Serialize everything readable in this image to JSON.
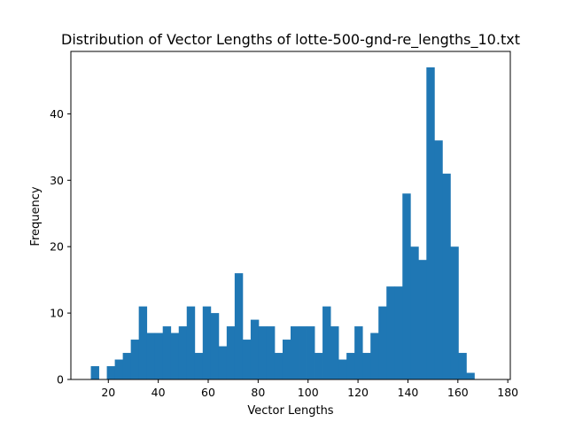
{
  "chart_data": {
    "type": "bar",
    "title": "Distribution of Vector Lengths of lotte-500-gnd-re_lengths_10.txt",
    "xlabel": "Vector Lengths",
    "ylabel": "Frequency",
    "xlim": [
      5.0,
      181.0
    ],
    "ylim": [
      0,
      49.4
    ],
    "xticks": [
      20,
      40,
      60,
      80,
      100,
      120,
      140,
      160,
      180
    ],
    "yticks": [
      0,
      10,
      20,
      30,
      40
    ],
    "bar_color": "#1f77b4",
    "grid": false,
    "bin_start": 13.0,
    "bin_width": 3.2,
    "values": [
      2,
      0,
      2,
      3,
      4,
      6,
      11,
      7,
      7,
      8,
      7,
      8,
      11,
      4,
      11,
      10,
      5,
      8,
      16,
      6,
      9,
      8,
      8,
      4,
      6,
      8,
      8,
      8,
      4,
      11,
      8,
      3,
      4,
      8,
      4,
      7,
      11,
      14,
      14,
      28,
      20,
      18,
      47,
      36,
      31,
      20,
      4,
      1
    ]
  }
}
